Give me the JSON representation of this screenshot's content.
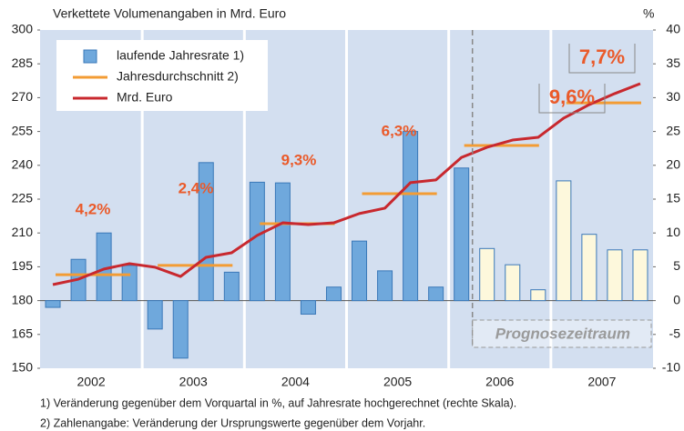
{
  "chart_data": {
    "type": "bar-line",
    "title": "Verkettete Volumenangaben in Mrd. Euro",
    "y2_title": "%",
    "year_labels": [
      "2002",
      "2003",
      "2004",
      "2005",
      "2006",
      "2007"
    ],
    "ylim": [
      150,
      300
    ],
    "yticks": [
      150,
      165,
      180,
      195,
      210,
      225,
      240,
      255,
      270,
      285,
      300
    ],
    "y2lim": [
      -10,
      40
    ],
    "y2ticks": [
      -10,
      -5,
      0,
      5,
      10,
      15,
      20,
      25,
      30,
      35,
      40
    ],
    "series": [
      {
        "name": "laufende Jahresrate 1)",
        "type": "bar",
        "axis": "y2",
        "color": "#6fa8dc",
        "colors": [
          "#6fa8dc",
          "#6fa8dc",
          "#6fa8dc",
          "#6fa8dc",
          "#6fa8dc",
          "#6fa8dc",
          "#6fa8dc",
          "#6fa8dc",
          "#6fa8dc",
          "#6fa8dc",
          "#6fa8dc",
          "#6fa8dc",
          "#6fa8dc",
          "#6fa8dc",
          "#6fa8dc",
          "#6fa8dc",
          "#6fa8dc",
          "#fdf8dc",
          "#fdf8dc",
          "#fdf8dc",
          "#fdf8dc",
          "#fdf8dc",
          "#fdf8dc",
          "#fdf8dc"
        ],
        "values": [
          -1,
          6.1,
          10,
          5.2,
          -4.2,
          -8.5,
          20.4,
          4.2,
          17.5,
          17.4,
          -2,
          2,
          8.8,
          4.4,
          25,
          2,
          19.6,
          7.7,
          5.3,
          1.6,
          17.7,
          9.8,
          7.5,
          7.5
        ]
      },
      {
        "name": "Jahresdurchschnitt 2)",
        "type": "annual",
        "color": "#f39c34",
        "values": [
          191.5,
          195.6,
          214.1,
          227.4,
          248.8,
          267.7
        ]
      },
      {
        "name": "Mrd. Euro",
        "type": "line",
        "color": "#c8282e",
        "values": [
          187.1,
          189.5,
          194,
          196.4,
          194.8,
          190.7,
          199.2,
          201.2,
          208.9,
          214.5,
          213.7,
          214.5,
          218.6,
          221,
          232.3,
          233.5,
          243.5,
          248,
          251.2,
          252.4,
          260.9,
          266.9,
          271.8,
          276.2
        ]
      }
    ],
    "annotations": [
      "4,2%",
      "2,4%",
      "9,3%",
      "6,3%",
      "9,6%",
      "7,7%"
    ],
    "forecast_label": "Prognosezeitraum",
    "footnotes": [
      "1) Veränderung gegenüber dem Vorquartal in %, auf Jahresrate hochgerechnet (rechte Skala).",
      "2) Zahlenangabe: Veränderung der Ursprungswerte gegenüber dem Vorjahr."
    ]
  }
}
